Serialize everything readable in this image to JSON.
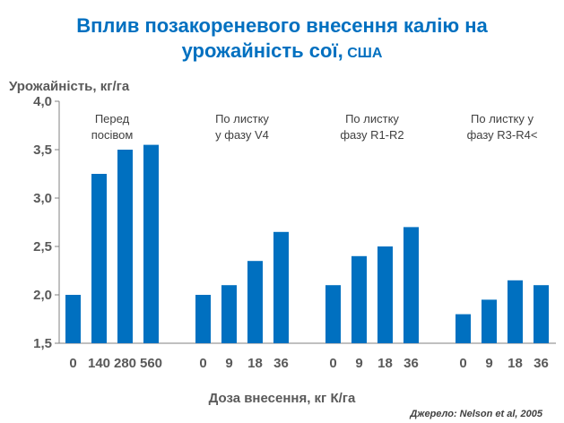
{
  "title": {
    "line1": "Вплив позакореневого внесення калію на",
    "line2_main": "урожайність сої,",
    "line2_small": " США"
  },
  "source": "Джерело: Nelson et al, 2005",
  "chart_data": {
    "type": "bar",
    "ylabel": "Урожайність, кг/га",
    "xlabel": "Доза внесення, кг К/га",
    "ylim": [
      1.5,
      4.0
    ],
    "yticks": [
      "1,5",
      "2,0",
      "2,5",
      "3,0",
      "3,5",
      "4,0"
    ],
    "grid": false,
    "bar_color": "#0070c0",
    "groups": [
      {
        "label_lines": [
          "Перед",
          "посівом"
        ],
        "categories": [
          "0",
          "140",
          "280",
          "560"
        ],
        "values": [
          2.0,
          3.25,
          3.5,
          3.55
        ]
      },
      {
        "label_lines": [
          "По листку",
          "у фазу  V4"
        ],
        "categories": [
          "0",
          "9",
          "18",
          "36"
        ],
        "values": [
          2.0,
          2.1,
          2.35,
          2.65
        ]
      },
      {
        "label_lines": [
          "По листку",
          "фазу  R1-R2"
        ],
        "categories": [
          "0",
          "9",
          "18",
          "36"
        ],
        "values": [
          2.1,
          2.4,
          2.5,
          2.7
        ]
      },
      {
        "label_lines": [
          "По листку у",
          "фазу  R3-R4<"
        ],
        "categories": [
          "0",
          "9",
          "18",
          "36"
        ],
        "values": [
          1.8,
          1.95,
          2.15,
          2.1
        ]
      }
    ]
  }
}
